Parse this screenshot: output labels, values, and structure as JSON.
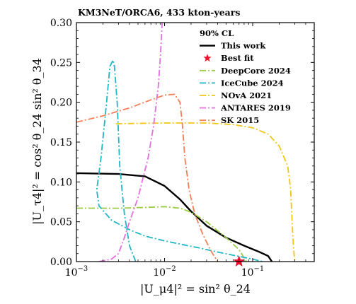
{
  "chart_data": {
    "type": "line",
    "title": "KM3NeT/ORCA6, 433 kton-years",
    "xlabel": "|U_μ4|² = sin² θ_24",
    "ylabel": "|U_τ4|² = cos² θ_24 sin² θ_34",
    "xscale": "log",
    "xlim": [
      0.001,
      0.5
    ],
    "ylim": [
      0,
      0.3
    ],
    "x_ticks": [
      0.001,
      0.01,
      0.1
    ],
    "x_tick_labels": [
      {
        "base": "10",
        "exp": "−3"
      },
      {
        "base": "10",
        "exp": "−2"
      },
      {
        "base": "10",
        "exp": "−1"
      }
    ],
    "y_ticks": [
      0,
      0.05,
      0.1,
      0.15,
      0.2,
      0.25,
      0.3
    ],
    "y_tick_labels": [
      "0.00",
      "0.05",
      "0.10",
      "0.15",
      "0.20",
      "0.25",
      "0.30"
    ],
    "legend": {
      "header": "90% CL",
      "placement": "top-right"
    },
    "best_fit": {
      "name": "Best fit",
      "x": 0.07,
      "y": 0.0,
      "color": "#e8102a",
      "marker": "star"
    },
    "series": [
      {
        "name": "This work",
        "color": "#000000",
        "dash": "solid",
        "points": [
          [
            0.001,
            0.111
          ],
          [
            0.003,
            0.11
          ],
          [
            0.006,
            0.107
          ],
          [
            0.01,
            0.095
          ],
          [
            0.015,
            0.078
          ],
          [
            0.02,
            0.063
          ],
          [
            0.03,
            0.045
          ],
          [
            0.05,
            0.03
          ],
          [
            0.08,
            0.02
          ],
          [
            0.12,
            0.012
          ],
          [
            0.15,
            0.007
          ],
          [
            0.165,
            0.0
          ]
        ]
      },
      {
        "name": "DeepCore 2024",
        "color": "#99cc44",
        "dash": "dashdot",
        "points": [
          [
            0.001,
            0.067
          ],
          [
            0.003,
            0.067
          ],
          [
            0.006,
            0.068
          ],
          [
            0.01,
            0.069
          ],
          [
            0.015,
            0.067
          ],
          [
            0.02,
            0.062
          ],
          [
            0.03,
            0.05
          ],
          [
            0.05,
            0.03
          ],
          [
            0.07,
            0.015
          ],
          [
            0.085,
            0.0
          ]
        ]
      },
      {
        "name": "IceCube 2024",
        "color": "#1fb6c6",
        "dash": "dashdot",
        "points": [
          [
            0.0047,
            0.0
          ],
          [
            0.004,
            0.02
          ],
          [
            0.0035,
            0.06
          ],
          [
            0.0031,
            0.12
          ],
          [
            0.0029,
            0.2
          ],
          [
            0.0027,
            0.245
          ],
          [
            0.0026,
            0.253
          ],
          [
            0.0024,
            0.245
          ],
          [
            0.0022,
            0.2
          ],
          [
            0.0019,
            0.13
          ],
          [
            0.0017,
            0.09
          ],
          [
            0.0018,
            0.07
          ],
          [
            0.0025,
            0.052
          ],
          [
            0.004,
            0.04
          ],
          [
            0.006,
            0.032
          ],
          [
            0.01,
            0.026
          ],
          [
            0.015,
            0.022
          ],
          [
            0.025,
            0.017
          ],
          [
            0.04,
            0.012
          ],
          [
            0.06,
            0.008
          ],
          [
            0.1,
            0.003
          ],
          [
            0.13,
            0.0
          ]
        ]
      },
      {
        "name": "NOvA 2021",
        "color": "#f5c518",
        "dash": "dashdot",
        "points": [
          [
            0.0028,
            0.173
          ],
          [
            0.01,
            0.174
          ],
          [
            0.03,
            0.174
          ],
          [
            0.06,
            0.172
          ],
          [
            0.1,
            0.168
          ],
          [
            0.15,
            0.16
          ],
          [
            0.2,
            0.145
          ],
          [
            0.25,
            0.12
          ],
          [
            0.27,
            0.09
          ],
          [
            0.28,
            0.05
          ],
          [
            0.29,
            0.02
          ],
          [
            0.3,
            0.0
          ]
        ]
      },
      {
        "name": "ANTARES 2019",
        "color": "#e36fe0",
        "dash": "dashdot",
        "points": [
          [
            0.0018,
            0.0
          ],
          [
            0.0025,
            0.003
          ],
          [
            0.003,
            0.01
          ],
          [
            0.0035,
            0.03
          ],
          [
            0.004,
            0.05
          ],
          [
            0.005,
            0.08
          ],
          [
            0.0065,
            0.13
          ],
          [
            0.0075,
            0.17
          ],
          [
            0.0085,
            0.22
          ],
          [
            0.009,
            0.26
          ],
          [
            0.0094,
            0.3
          ]
        ]
      },
      {
        "name": "SK 2015",
        "color": "#f47f55",
        "dash": "dashdot",
        "points": [
          [
            0.001,
            0.175
          ],
          [
            0.002,
            0.183
          ],
          [
            0.004,
            0.193
          ],
          [
            0.007,
            0.203
          ],
          [
            0.01,
            0.209
          ],
          [
            0.013,
            0.21
          ],
          [
            0.015,
            0.2
          ],
          [
            0.016,
            0.17
          ],
          [
            0.017,
            0.13
          ],
          [
            0.019,
            0.09
          ],
          [
            0.022,
            0.06
          ],
          [
            0.027,
            0.035
          ],
          [
            0.033,
            0.015
          ],
          [
            0.04,
            0.0
          ]
        ]
      }
    ]
  }
}
